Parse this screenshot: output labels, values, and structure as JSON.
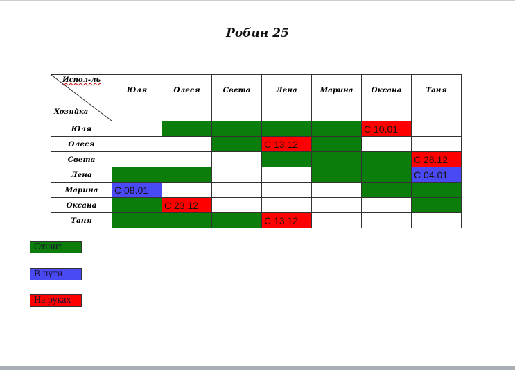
{
  "title": "Робин 25",
  "colors": {
    "done": "#0a7d0a",
    "transit": "#4a4af5",
    "hands": "#ff0000",
    "empty": "#ffffff"
  },
  "table": {
    "corner_top": "Испол-ль",
    "corner_bottom": "Хозяйка",
    "columns": [
      "Юля",
      "Олеся",
      "Света",
      "Лена",
      "Марина",
      "Оксана",
      "Таня"
    ],
    "rows": [
      {
        "name": "Юля",
        "cells": [
          {
            "s": "empty"
          },
          {
            "s": "done"
          },
          {
            "s": "done"
          },
          {
            "s": "done"
          },
          {
            "s": "done"
          },
          {
            "s": "hands",
            "t": "С 10.01"
          },
          {
            "s": "empty"
          }
        ]
      },
      {
        "name": "Олеся",
        "cells": [
          {
            "s": "empty"
          },
          {
            "s": "empty"
          },
          {
            "s": "done"
          },
          {
            "s": "hands",
            "t": "С 13.12"
          },
          {
            "s": "done"
          },
          {
            "s": "empty"
          },
          {
            "s": "empty"
          }
        ]
      },
      {
        "name": "Света",
        "cells": [
          {
            "s": "empty"
          },
          {
            "s": "empty"
          },
          {
            "s": "empty"
          },
          {
            "s": "done"
          },
          {
            "s": "done"
          },
          {
            "s": "done"
          },
          {
            "s": "hands",
            "t": "С 28.12"
          }
        ]
      },
      {
        "name": "Лена",
        "cells": [
          {
            "s": "done"
          },
          {
            "s": "done"
          },
          {
            "s": "empty"
          },
          {
            "s": "empty"
          },
          {
            "s": "done"
          },
          {
            "s": "done"
          },
          {
            "s": "transit",
            "t": "С 04.01"
          }
        ]
      },
      {
        "name": "Марина",
        "cells": [
          {
            "s": "transit",
            "t": "С 08.01"
          },
          {
            "s": "empty"
          },
          {
            "s": "empty"
          },
          {
            "s": "empty"
          },
          {
            "s": "empty"
          },
          {
            "s": "done"
          },
          {
            "s": "done"
          }
        ]
      },
      {
        "name": "Оксана",
        "cells": [
          {
            "s": "done"
          },
          {
            "s": "hands",
            "t": "С 23.12"
          },
          {
            "s": "empty"
          },
          {
            "s": "empty"
          },
          {
            "s": "empty"
          },
          {
            "s": "empty"
          },
          {
            "s": "done"
          }
        ]
      },
      {
        "name": "Таня",
        "cells": [
          {
            "s": "done"
          },
          {
            "s": "done"
          },
          {
            "s": "done"
          },
          {
            "s": "hands",
            "t": "С 13.12"
          },
          {
            "s": "empty"
          },
          {
            "s": "empty"
          },
          {
            "s": "empty"
          }
        ]
      }
    ]
  },
  "legend": [
    {
      "label": "Отшит",
      "s": "done"
    },
    {
      "label": "В пути",
      "s": "transit"
    },
    {
      "label": "На руках",
      "s": "hands"
    }
  ]
}
